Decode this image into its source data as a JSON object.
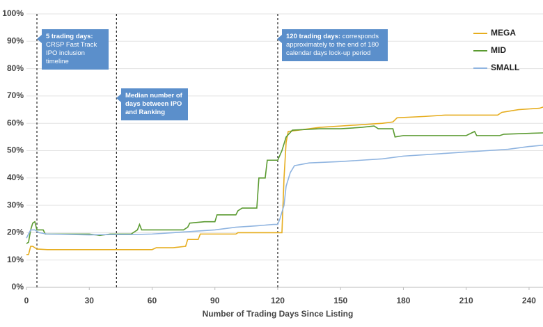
{
  "chart_data": {
    "type": "line",
    "x_label": "Number of Trading Days Since Listing",
    "xlim": [
      0,
      247
    ],
    "xticks": [
      0,
      30,
      60,
      90,
      120,
      150,
      180,
      210,
      240
    ],
    "ylim": [
      0,
      100
    ],
    "yticks": [
      {
        "value": 0,
        "label": "0%"
      },
      {
        "value": 10,
        "label": "10%"
      },
      {
        "value": 20,
        "label": "20%"
      },
      {
        "value": 30,
        "label": "30%"
      },
      {
        "value": 40,
        "label": "40%"
      },
      {
        "value": 50,
        "label": "50%"
      },
      {
        "value": 60,
        "label": "60%"
      },
      {
        "value": 70,
        "label": "70%"
      },
      {
        "value": 80,
        "label": "80%"
      },
      {
        "value": 90,
        "label": "90%"
      },
      {
        "value": 100,
        "label": "100%"
      }
    ],
    "grid": true,
    "legend": "top-right",
    "series": [
      {
        "name": "MEGA",
        "color": "#e6ad1e",
        "x": [
          0,
          1,
          2,
          3,
          4,
          5,
          10,
          60,
          62,
          70,
          76,
          77,
          82,
          83,
          100,
          101,
          120,
          122,
          123,
          124,
          125,
          130,
          140,
          150,
          160,
          170,
          175,
          177,
          190,
          200,
          225,
          227,
          235,
          245,
          247
        ],
        "values": [
          12,
          12,
          15,
          15,
          14.5,
          14,
          13.8,
          13.8,
          14.5,
          14.5,
          15,
          17.5,
          17.5,
          19.5,
          19.5,
          20,
          20,
          20,
          40,
          53,
          57,
          57.5,
          58.5,
          59,
          59.5,
          60,
          60.5,
          62,
          62.5,
          63,
          63,
          64,
          65,
          65.5,
          66
        ]
      },
      {
        "name": "MID",
        "color": "#5a9a30",
        "x": [
          0,
          1,
          2,
          3,
          4,
          5,
          8,
          9,
          30,
          35,
          40,
          50,
          53,
          54,
          55,
          60,
          75,
          77,
          78,
          85,
          90,
          91,
          100,
          101,
          103,
          110,
          111,
          114,
          115,
          120,
          122,
          124,
          127,
          140,
          150,
          160,
          166,
          168,
          175,
          176,
          180,
          210,
          214,
          215,
          226,
          228,
          247
        ],
        "values": [
          16,
          16.5,
          21,
          23.5,
          24,
          21,
          21,
          19.5,
          19.5,
          19,
          19.5,
          19.5,
          21,
          23,
          21,
          21,
          21,
          22,
          23.5,
          24,
          24,
          26.5,
          26.5,
          28,
          29,
          29,
          40,
          40,
          46.5,
          46.5,
          50,
          55,
          57.5,
          58,
          58,
          58.5,
          59,
          58,
          58,
          55,
          55.5,
          55.5,
          57,
          55.5,
          55.5,
          56,
          56.5
        ]
      },
      {
        "name": "SMALL",
        "color": "#8fb4e0",
        "x": [
          0,
          2,
          4,
          6,
          10,
          30,
          40,
          50,
          60,
          70,
          80,
          90,
          100,
          110,
          118,
          120,
          121,
          123,
          124,
          126,
          128,
          135,
          150,
          160,
          170,
          180,
          190,
          200,
          210,
          220,
          230,
          240,
          247
        ],
        "values": [
          18,
          21,
          21,
          20,
          19.5,
          19.2,
          19.3,
          19.3,
          19.5,
          20,
          20.5,
          21,
          22,
          22.5,
          23,
          23,
          25,
          30,
          37,
          42,
          44.5,
          45.5,
          46,
          46.5,
          47,
          48,
          48.5,
          49,
          49.5,
          50,
          50.5,
          51.5,
          52
        ]
      }
    ],
    "annotations": [
      {
        "x": 5,
        "bold": "5 trading days:",
        "text": "CRSP Fast Track IPO inclusion timeline"
      },
      {
        "x": 43,
        "bold": "Median number of days between IPO and Ranking"
      },
      {
        "x": 120,
        "bold": "120 trading days:",
        "text": "corresponds approximately to the end of 180 calendar days lock-up period"
      }
    ]
  }
}
